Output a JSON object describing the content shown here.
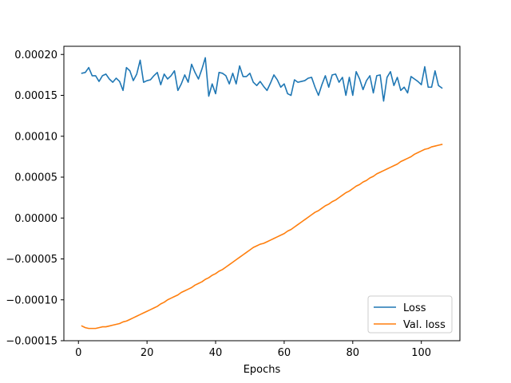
{
  "chart_data": {
    "type": "line",
    "title": "",
    "xlabel": "Epochs",
    "ylabel": "",
    "xlim": [
      -4.25,
      111.25
    ],
    "ylim": [
      -0.00015,
      0.00021
    ],
    "xticks": [
      0,
      20,
      40,
      60,
      80,
      100
    ],
    "xtick_labels": [
      "0",
      "20",
      "40",
      "60",
      "80",
      "100"
    ],
    "yticks": [
      -0.00015,
      -0.0001,
      -5e-05,
      0.0,
      5e-05,
      0.0001,
      0.00015,
      0.0002
    ],
    "ytick_labels": [
      "−0.00015",
      "−0.00010",
      "−0.00005",
      "0.00000",
      "0.00005",
      "0.00010",
      "0.00015",
      "0.00020"
    ],
    "grid": false,
    "legend_position": "lower-right",
    "series": [
      {
        "name": "Loss",
        "color": "#1f77b4",
        "x": [
          1,
          2,
          3,
          4,
          5,
          6,
          7,
          8,
          9,
          10,
          11,
          12,
          13,
          14,
          15,
          16,
          17,
          18,
          19,
          20,
          21,
          22,
          23,
          24,
          25,
          26,
          27,
          28,
          29,
          30,
          31,
          32,
          33,
          34,
          35,
          36,
          37,
          38,
          39,
          40,
          41,
          42,
          43,
          44,
          45,
          46,
          47,
          48,
          49,
          50,
          51,
          52,
          53,
          54,
          55,
          56,
          57,
          58,
          59,
          60,
          61,
          62,
          63,
          64,
          65,
          66,
          67,
          68,
          69,
          70,
          71,
          72,
          73,
          74,
          75,
          76,
          77,
          78,
          79,
          80,
          81,
          82,
          83,
          84,
          85,
          86,
          87,
          88,
          89,
          90,
          91,
          92,
          93,
          94,
          95,
          96,
          97,
          98,
          99,
          100,
          101,
          102,
          103,
          104,
          105,
          106
        ],
        "values": [
          0.000177,
          0.000178,
          0.000184,
          0.000174,
          0.000174,
          0.000167,
          0.000174,
          0.000176,
          0.00017,
          0.000166,
          0.000171,
          0.000167,
          0.000156,
          0.000184,
          0.00018,
          0.000168,
          0.000176,
          0.000193,
          0.000166,
          0.000168,
          0.000169,
          0.000174,
          0.000178,
          0.000163,
          0.000176,
          0.00017,
          0.000174,
          0.00018,
          0.000156,
          0.000164,
          0.000175,
          0.000166,
          0.000188,
          0.000178,
          0.00017,
          0.000182,
          0.000196,
          0.000149,
          0.000164,
          0.000152,
          0.000178,
          0.000177,
          0.000174,
          0.000164,
          0.000177,
          0.000164,
          0.000186,
          0.000173,
          0.000173,
          0.000177,
          0.000166,
          0.000162,
          0.000167,
          0.000161,
          0.000156,
          0.000165,
          0.000175,
          0.000169,
          0.00016,
          0.000164,
          0.000152,
          0.00015,
          0.000169,
          0.000166,
          0.000167,
          0.000168,
          0.000171,
          0.000172,
          0.00016,
          0.00015,
          0.000163,
          0.000174,
          0.00016,
          0.000175,
          0.000176,
          0.000166,
          0.000172,
          0.00015,
          0.000172,
          0.00015,
          0.000179,
          0.00017,
          0.000157,
          0.000168,
          0.000174,
          0.000153,
          0.000174,
          0.000175,
          0.000143,
          0.000172,
          0.000179,
          0.000162,
          0.000172,
          0.000156,
          0.00016,
          0.000153,
          0.000173,
          0.00017,
          0.000167,
          0.000163,
          0.000185,
          0.00016,
          0.00016,
          0.00018,
          0.000162,
          0.000159
        ]
      },
      {
        "name": "Val. loss",
        "color": "#ff7f0e",
        "x": [
          1,
          2,
          3,
          4,
          5,
          6,
          7,
          8,
          9,
          10,
          11,
          12,
          13,
          14,
          15,
          16,
          17,
          18,
          19,
          20,
          21,
          22,
          23,
          24,
          25,
          26,
          27,
          28,
          29,
          30,
          31,
          32,
          33,
          34,
          35,
          36,
          37,
          38,
          39,
          40,
          41,
          42,
          43,
          44,
          45,
          46,
          47,
          48,
          49,
          50,
          51,
          52,
          53,
          54,
          55,
          56,
          57,
          58,
          59,
          60,
          61,
          62,
          63,
          64,
          65,
          66,
          67,
          68,
          69,
          70,
          71,
          72,
          73,
          74,
          75,
          76,
          77,
          78,
          79,
          80,
          81,
          82,
          83,
          84,
          85,
          86,
          87,
          88,
          89,
          90,
          91,
          92,
          93,
          94,
          95,
          96,
          97,
          98,
          99,
          100,
          101,
          102,
          103,
          104,
          105,
          106
        ],
        "values": [
          -0.000132,
          -0.000134,
          -0.000135,
          -0.000135,
          -0.000135,
          -0.000134,
          -0.000133,
          -0.000133,
          -0.000132,
          -0.000131,
          -0.00013,
          -0.000129,
          -0.000127,
          -0.000126,
          -0.000124,
          -0.000122,
          -0.00012,
          -0.000118,
          -0.000116,
          -0.000114,
          -0.000112,
          -0.00011,
          -0.000108,
          -0.000105,
          -0.000103,
          -0.0001,
          -9.8e-05,
          -9.6e-05,
          -9.4e-05,
          -9.1e-05,
          -8.9e-05,
          -8.7e-05,
          -8.5e-05,
          -8.2e-05,
          -8e-05,
          -7.8e-05,
          -7.5e-05,
          -7.3e-05,
          -7e-05,
          -6.8e-05,
          -6.5e-05,
          -6.3e-05,
          -6e-05,
          -5.7e-05,
          -5.4e-05,
          -5.1e-05,
          -4.8e-05,
          -4.5e-05,
          -4.2e-05,
          -3.9e-05,
          -3.6e-05,
          -3.4e-05,
          -3.2e-05,
          -3.1e-05,
          -2.9e-05,
          -2.7e-05,
          -2.5e-05,
          -2.3e-05,
          -2.1e-05,
          -1.9e-05,
          -1.6e-05,
          -1.4e-05,
          -1.1e-05,
          -8e-06,
          -5e-06,
          -2e-06,
          1e-06,
          4e-06,
          7e-06,
          9e-06,
          1.2e-05,
          1.5e-05,
          1.7e-05,
          2e-05,
          2.2e-05,
          2.5e-05,
          2.8e-05,
          3.1e-05,
          3.3e-05,
          3.6e-05,
          3.9e-05,
          4.1e-05,
          4.4e-05,
          4.6e-05,
          4.9e-05,
          5.1e-05,
          5.4e-05,
          5.6e-05,
          5.8e-05,
          6e-05,
          6.2e-05,
          6.4e-05,
          6.6e-05,
          6.9e-05,
          7.1e-05,
          7.3e-05,
          7.5e-05,
          7.8e-05,
          8e-05,
          8.2e-05,
          8.4e-05,
          8.5e-05,
          8.7e-05,
          8.8e-05,
          8.9e-05,
          9e-05
        ]
      }
    ]
  }
}
